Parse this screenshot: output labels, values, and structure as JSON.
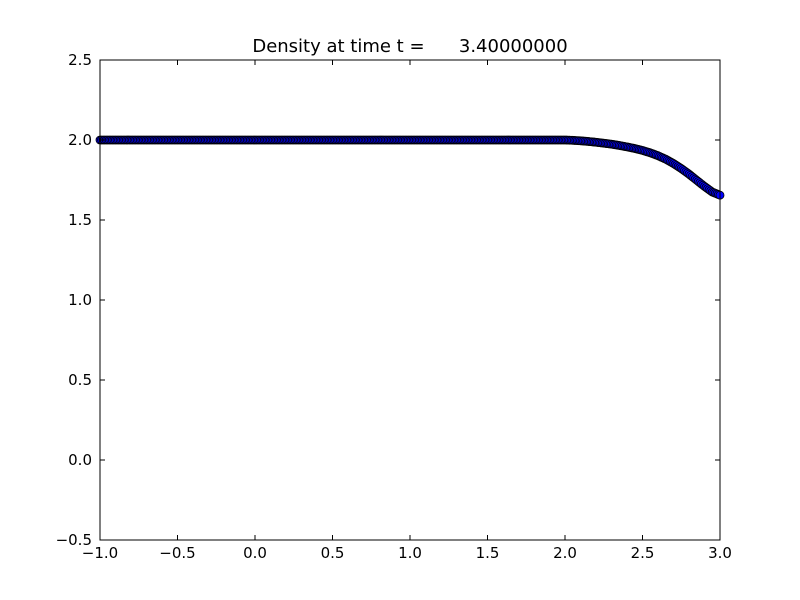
{
  "chart_data": {
    "type": "scatter",
    "title": "Density at time t =      3.40000000",
    "xlabel": "",
    "ylabel": "",
    "xlim": [
      -1.0,
      3.0
    ],
    "ylim": [
      -0.5,
      2.5
    ],
    "grid": false,
    "xticks": [
      -1.0,
      -0.5,
      0.0,
      0.5,
      1.0,
      1.5,
      2.0,
      2.5,
      3.0
    ],
    "xtick_labels": [
      "−1.0",
      "−0.5",
      "0.0",
      "0.5",
      "1.0",
      "1.5",
      "2.0",
      "2.5",
      "3.0"
    ],
    "yticks": [
      -0.5,
      0.0,
      0.5,
      1.0,
      1.5,
      2.0,
      2.5
    ],
    "ytick_labels": [
      "−0.5",
      "0.0",
      "0.5",
      "1.0",
      "1.5",
      "2.0",
      "2.5"
    ],
    "marker": "circle",
    "marker_color": "#0000ff",
    "series": [
      {
        "x": [
          -1.0,
          -0.9,
          -0.8,
          -0.7,
          -0.6,
          -0.5,
          -0.4,
          -0.3,
          -0.2,
          -0.1,
          0.0,
          0.1,
          0.2,
          0.3,
          0.4,
          0.5,
          0.6,
          0.7,
          0.8,
          0.9,
          1.0,
          1.1,
          1.2,
          1.3,
          1.4,
          1.5,
          1.6,
          1.7,
          1.8,
          1.9,
          2.0,
          2.05,
          2.1,
          2.15,
          2.2,
          2.25,
          2.3,
          2.35,
          2.4,
          2.45,
          2.5,
          2.55,
          2.6,
          2.65,
          2.7,
          2.75,
          2.8,
          2.85,
          2.9,
          2.95,
          3.0
        ],
        "y": [
          2.0,
          2.0,
          2.0,
          2.0,
          2.0,
          2.0,
          2.0,
          2.0,
          2.0,
          2.0,
          2.0,
          2.0,
          2.0,
          2.0,
          2.0,
          2.0,
          2.0,
          2.0,
          2.0,
          2.0,
          2.0,
          2.0,
          2.0,
          2.0,
          2.0,
          2.0,
          2.0,
          2.0,
          2.0,
          2.0,
          2.0,
          1.998,
          1.995,
          1.991,
          1.986,
          1.98,
          1.974,
          1.966,
          1.957,
          1.947,
          1.935,
          1.92,
          1.902,
          1.88,
          1.853,
          1.822,
          1.787,
          1.748,
          1.71,
          1.675,
          1.655
        ]
      }
    ]
  }
}
